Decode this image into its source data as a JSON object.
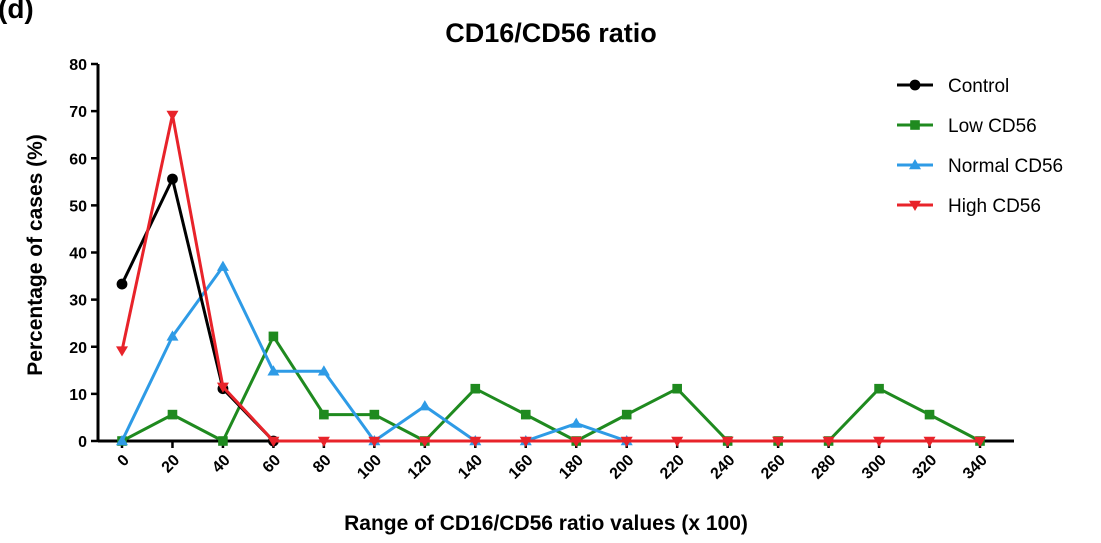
{
  "panel_label": "(d)",
  "chart_data": {
    "type": "line",
    "title": "CD16/CD56 ratio",
    "xlabel": "Range of CD16/CD56 ratio values (x 100)",
    "ylabel": "Percentage of cases (%)",
    "x": [
      0,
      20,
      40,
      60,
      80,
      100,
      120,
      140,
      160,
      180,
      200,
      220,
      240,
      260,
      280,
      300,
      320,
      340
    ],
    "x_tick_labels": [
      "0",
      "20",
      "40",
      "60",
      "80",
      "100",
      "120",
      "140",
      "160",
      "180",
      "200",
      "220",
      "240",
      "260",
      "280",
      "300",
      "320",
      "340"
    ],
    "ylim": [
      0,
      80
    ],
    "y_ticks": [
      0,
      10,
      20,
      30,
      40,
      50,
      60,
      70,
      80
    ],
    "y_tick_labels": [
      "0",
      "10",
      "20",
      "30",
      "40",
      "50",
      "60",
      "70",
      "80"
    ],
    "grid": false,
    "legend_position": "top-right",
    "series": [
      {
        "name": "Control",
        "color": "#000000",
        "marker": "circle",
        "x": [
          0,
          20,
          40,
          60
        ],
        "values": [
          33.3,
          55.6,
          11.1,
          0
        ]
      },
      {
        "name": "Low CD56",
        "color": "#1f8a1f",
        "marker": "square",
        "x": [
          0,
          20,
          40,
          60,
          80,
          100,
          120,
          140,
          160,
          180,
          200,
          220,
          240,
          260,
          280,
          300,
          320,
          340
        ],
        "values": [
          0,
          5.6,
          0,
          22.2,
          5.6,
          5.6,
          0,
          11.1,
          5.6,
          0,
          5.6,
          11.1,
          0,
          0,
          0,
          11.1,
          5.6,
          0
        ]
      },
      {
        "name": "Normal CD56",
        "color": "#2e9be6",
        "marker": "triangle-up",
        "x": [
          0,
          20,
          40,
          60,
          80,
          100,
          120,
          140,
          160,
          180,
          200
        ],
        "values": [
          0,
          22.2,
          37,
          14.8,
          14.8,
          0,
          7.4,
          0,
          0,
          3.7,
          0
        ]
      },
      {
        "name": "High CD56",
        "color": "#e8232a",
        "marker": "triangle-down",
        "x": [
          0,
          20,
          40,
          60,
          80,
          100,
          120,
          140,
          160,
          180,
          200,
          220,
          240,
          260,
          280,
          300,
          320,
          340
        ],
        "values": [
          19.2,
          69.2,
          11.5,
          0,
          0,
          0,
          0,
          0,
          0,
          0,
          0,
          0,
          0,
          0,
          0,
          0,
          0,
          0
        ]
      }
    ]
  }
}
